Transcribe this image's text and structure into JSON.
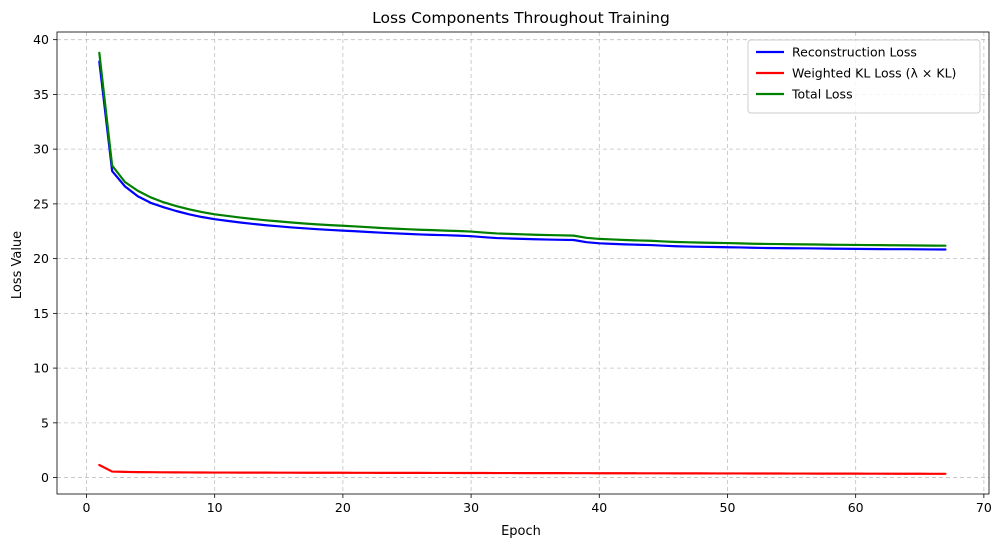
{
  "chart_data": {
    "type": "line",
    "title": "Loss Components Throughout Training",
    "xlabel": "Epoch",
    "ylabel": "Loss Value",
    "xlim": [
      -2.3,
      70.4
    ],
    "ylim": [
      -1.5,
      40.7
    ],
    "xticks": [
      0,
      10,
      20,
      30,
      40,
      50,
      60,
      70
    ],
    "yticks": [
      0,
      5,
      10,
      15,
      20,
      25,
      30,
      35,
      40
    ],
    "grid": true,
    "legend_position": "top-right",
    "x": [
      1,
      2,
      3,
      4,
      5,
      6,
      7,
      8,
      9,
      10,
      11,
      12,
      13,
      14,
      15,
      16,
      17,
      18,
      19,
      20,
      21,
      22,
      23,
      24,
      25,
      26,
      27,
      28,
      29,
      30,
      31,
      32,
      33,
      34,
      35,
      36,
      37,
      38,
      39,
      40,
      41,
      42,
      43,
      44,
      45,
      46,
      47,
      48,
      49,
      50,
      51,
      52,
      53,
      54,
      55,
      56,
      57,
      58,
      59,
      60,
      61,
      62,
      63,
      64,
      65,
      66,
      67
    ],
    "series": [
      {
        "name": "Reconstruction Loss",
        "color": "#0000ff",
        "values": [
          38.0,
          28.0,
          26.6,
          25.7,
          25.1,
          24.7,
          24.35,
          24.05,
          23.8,
          23.6,
          23.45,
          23.3,
          23.17,
          23.05,
          22.95,
          22.85,
          22.77,
          22.69,
          22.62,
          22.56,
          22.5,
          22.43,
          22.37,
          22.31,
          22.26,
          22.21,
          22.17,
          22.14,
          22.1,
          22.05,
          21.96,
          21.88,
          21.84,
          21.8,
          21.77,
          21.74,
          21.72,
          21.7,
          21.5,
          21.4,
          21.35,
          21.3,
          21.27,
          21.24,
          21.18,
          21.13,
          21.1,
          21.08,
          21.06,
          21.04,
          21.02,
          20.99,
          20.97,
          20.96,
          20.95,
          20.94,
          20.93,
          20.91,
          20.9,
          20.89,
          20.88,
          20.87,
          20.86,
          20.86,
          20.85,
          20.84,
          20.83
        ]
      },
      {
        "name": "Weighted KL Loss (λ × KL)",
        "color": "#ff0000",
        "values": [
          1.15,
          0.55,
          0.52,
          0.5,
          0.49,
          0.48,
          0.475,
          0.47,
          0.465,
          0.46,
          0.458,
          0.455,
          0.452,
          0.45,
          0.448,
          0.446,
          0.444,
          0.442,
          0.44,
          0.438,
          0.436,
          0.434,
          0.432,
          0.43,
          0.428,
          0.426,
          0.424,
          0.422,
          0.42,
          0.418,
          0.416,
          0.414,
          0.412,
          0.41,
          0.408,
          0.406,
          0.404,
          0.402,
          0.4,
          0.398,
          0.396,
          0.394,
          0.392,
          0.39,
          0.388,
          0.386,
          0.384,
          0.382,
          0.38,
          0.378,
          0.376,
          0.374,
          0.372,
          0.37,
          0.368,
          0.366,
          0.364,
          0.362,
          0.36,
          0.358,
          0.356,
          0.354,
          0.352,
          0.35,
          0.348,
          0.346,
          0.344
        ]
      },
      {
        "name": "Total Loss",
        "color": "#008000",
        "values": [
          38.8,
          28.5,
          27.0,
          26.2,
          25.6,
          25.15,
          24.8,
          24.5,
          24.25,
          24.05,
          23.9,
          23.75,
          23.62,
          23.5,
          23.4,
          23.3,
          23.21,
          23.13,
          23.06,
          23.0,
          22.94,
          22.87,
          22.8,
          22.74,
          22.69,
          22.64,
          22.6,
          22.56,
          22.52,
          22.47,
          22.38,
          22.3,
          22.26,
          22.22,
          22.18,
          22.15,
          22.13,
          22.1,
          21.9,
          21.8,
          21.75,
          21.7,
          21.66,
          21.63,
          21.57,
          21.52,
          21.49,
          21.46,
          21.44,
          21.42,
          21.39,
          21.36,
          21.34,
          21.33,
          21.31,
          21.3,
          21.29,
          21.27,
          21.26,
          21.25,
          21.24,
          21.23,
          21.22,
          21.21,
          21.2,
          21.19,
          21.18
        ]
      }
    ]
  }
}
